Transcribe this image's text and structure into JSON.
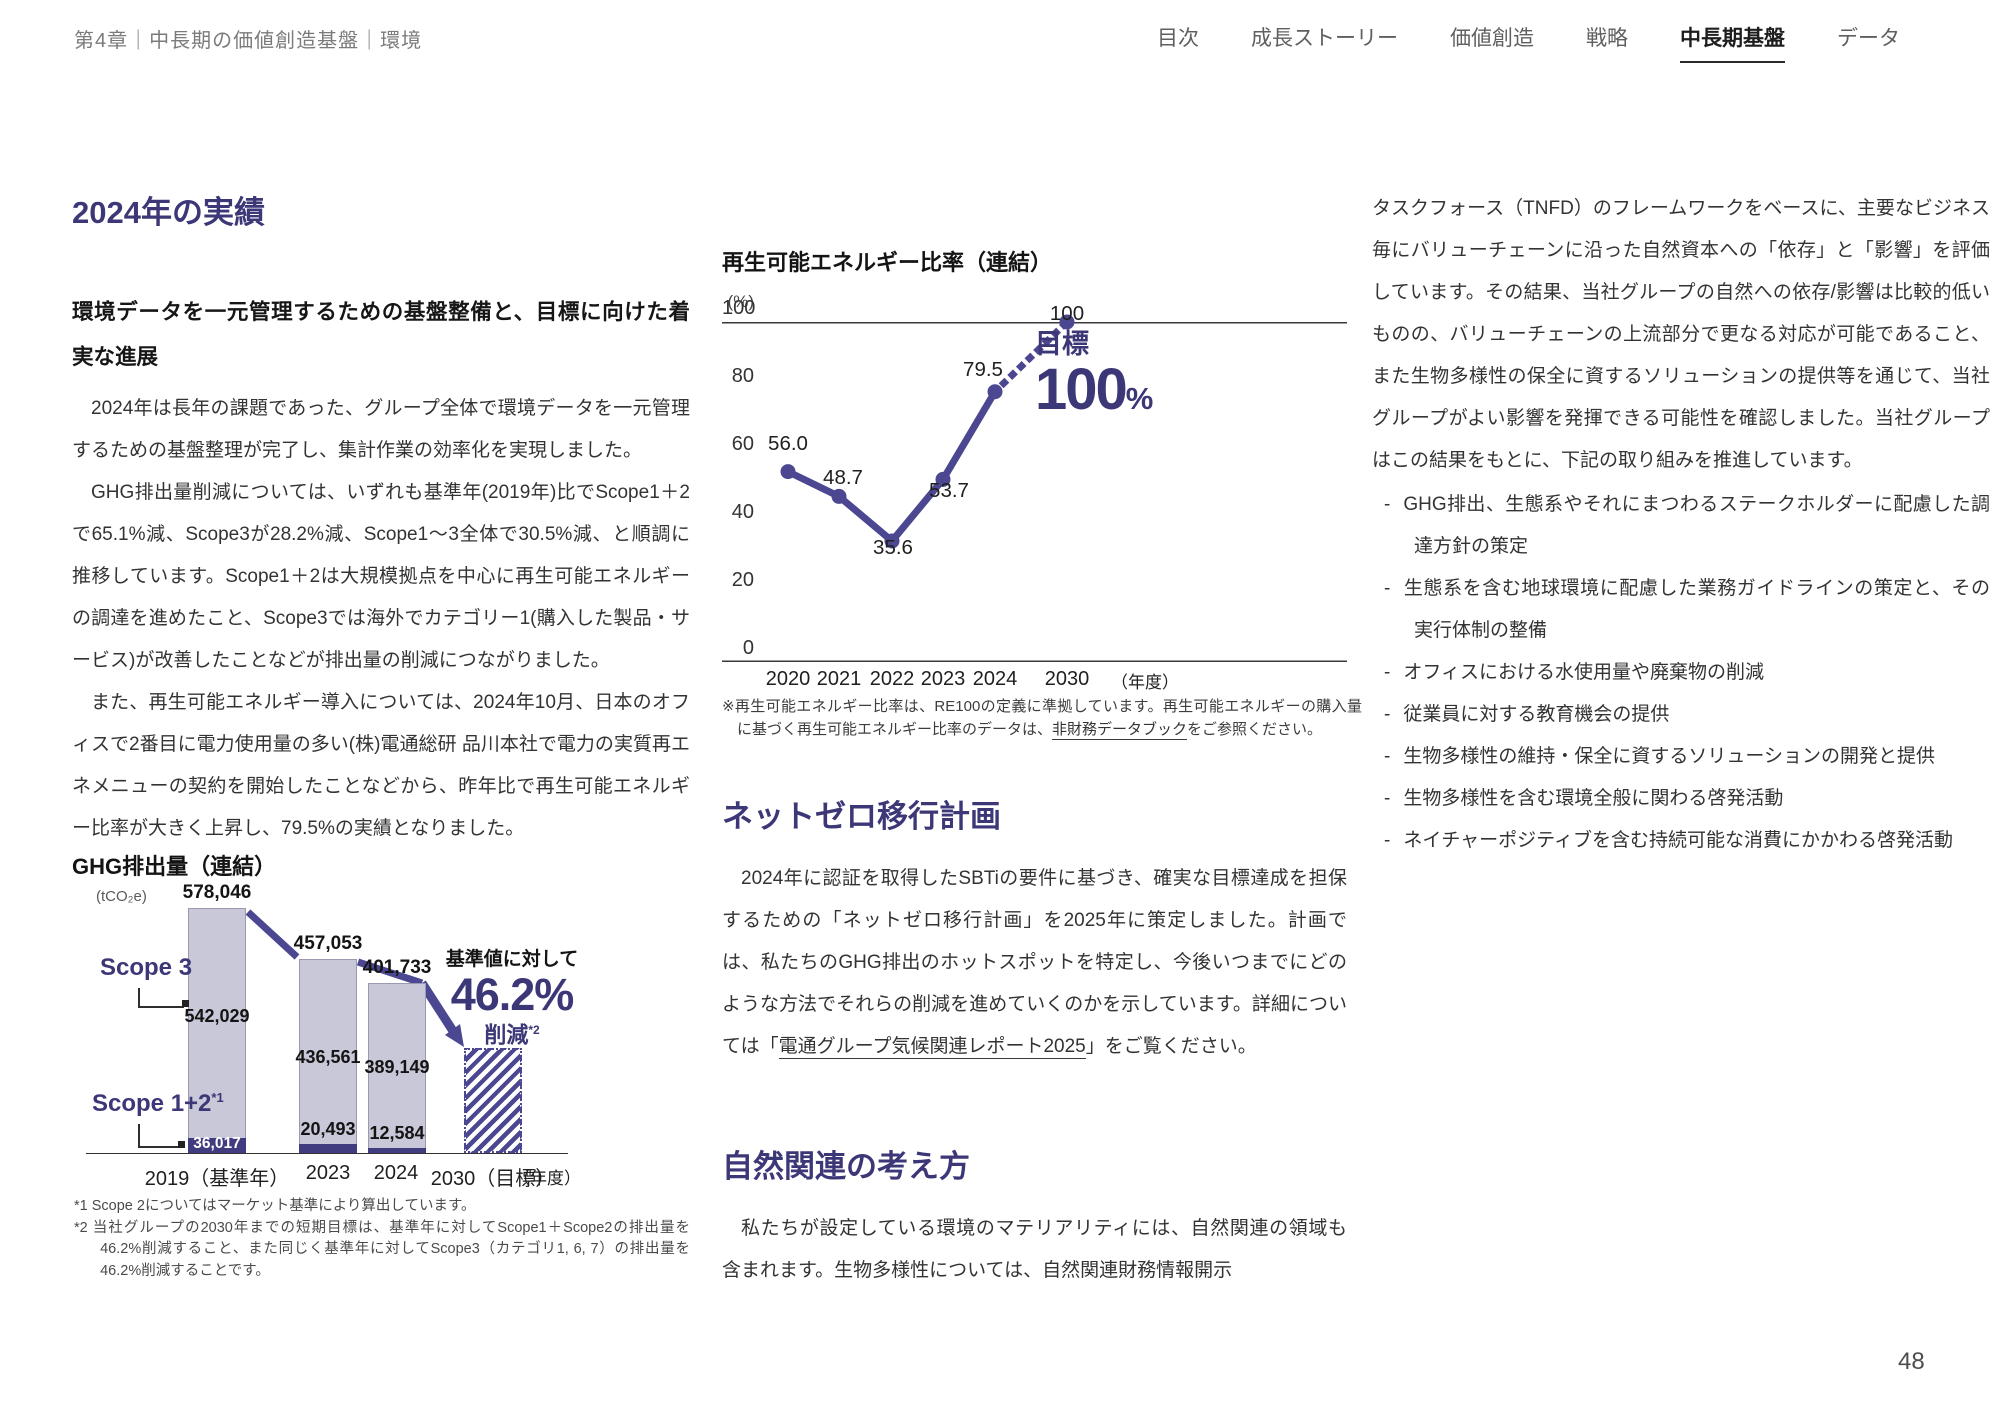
{
  "header": {
    "breadcrumb": "第4章｜中長期の価値創造基盤｜環境",
    "nav": [
      {
        "label": "目次",
        "active": false
      },
      {
        "label": "成長ストーリー",
        "active": false
      },
      {
        "label": "価値創造",
        "active": false
      },
      {
        "label": "戦略",
        "active": false
      },
      {
        "label": "中長期基盤",
        "active": true
      },
      {
        "label": "データ",
        "active": false
      }
    ]
  },
  "left_column": {
    "section_title": "2024年の実績",
    "subheading": "環境データを一元管理するための基盤整備と、目標に向けた着実な進展",
    "paragraphs": [
      "2024年は長年の課題であった、グループ全体で環境データを一元管理するための基盤整理が完了し、集計作業の効率化を実現しました。",
      "GHG排出量削減については、いずれも基準年(2019年)比でScope1＋2で65.1%減、Scope3が28.2%減、Scope1〜3全体で30.5%減、と順調に推移しています。Scope1＋2は大規模拠点を中心に再生可能エネルギーの調達を進めたこと、Scope3では海外でカテゴリー1(購入した製品・サービス)が改善したことなどが排出量の削減につながりました。",
      "また、再生可能エネルギー導入については、2024年10月、日本のオフィスで2番目に電力使用量の多い(株)電通総研 品川本社で電力の実質再エネメニューの契約を開始したことなどから、昨年比で再生可能エネルギー比率が大きく上昇し、79.5%の実績となりました。"
    ]
  },
  "chart_data": [
    {
      "type": "bar",
      "title": "GHG排出量（連結）",
      "unit": "(tCO₂e)",
      "categories": [
        "2019（基準年）",
        "2023",
        "2024",
        "2030（目標）"
      ],
      "x_axis_suffix": "（年度）",
      "totals": [
        578046,
        457053,
        401733,
        null
      ],
      "series": [
        {
          "name": "Scope 3",
          "values": [
            542029,
            436561,
            389149,
            null
          ]
        },
        {
          "name": "Scope 1+2",
          "sup": "*1",
          "values": [
            36017,
            20493,
            12584,
            null
          ]
        }
      ],
      "target_note": {
        "prefix": "基準値に対して",
        "value": "46.2%",
        "suffix": "削減",
        "sup": "*2"
      },
      "reduction_target_pct": 46.2,
      "footnotes": [
        "*1 Scope 2についてはマーケット基準により算出しています。",
        "*2 当社グループの2030年までの短期目標は、基準年に対してScope1＋Scope2の排出量を46.2%削減すること、また同じく基準年に対してScope3（カテゴリ1, 6, 7）の排出量を46.2%削減することです。"
      ]
    },
    {
      "type": "line",
      "title": "再生可能エネルギー比率（連結）",
      "unit": "(%)",
      "x": [
        "2020",
        "2021",
        "2022",
        "2023",
        "2024",
        "2030"
      ],
      "values": [
        56.0,
        48.7,
        35.6,
        53.7,
        79.5,
        100
      ],
      "value_labels": [
        "56.0",
        "48.7",
        "35.6",
        "53.7",
        "79.5",
        "100"
      ],
      "solid_until_index": 4,
      "ylim": [
        0,
        100
      ],
      "yticks": [
        100,
        80,
        60,
        40,
        20,
        0
      ],
      "x_axis_suffix": "（年度）",
      "grid": "top and bottom lines only",
      "legend": "none",
      "target": {
        "label": "目標",
        "value": "100",
        "unit": "%"
      },
      "footnote_pre": "※再生可能エネルギー比率は、RE100の定義に準拠しています。再生可能エネルギーの購入量に基づく再生可能エネルギー比率のデータは、",
      "footnote_link": "非財務データブック",
      "footnote_post": "をご参照ください。"
    }
  ],
  "middle_column": {
    "netzero": {
      "title": "ネットゼロ移行計画",
      "para_pre": "2024年に認証を取得したSBTiの要件に基づき、確実な目標達成を担保するための「ネットゼロ移行計画」を2025年に策定しました。計画では、私たちのGHG排出のホットスポットを特定し、今後いつまでにどのような方法でそれらの削減を進めていくのかを示しています。詳細については「",
      "link": "電通グループ気候関連レポート2025",
      "para_post": "」をご覧ください。"
    },
    "nature": {
      "title": "自然関連の考え方",
      "para": "私たちが設定している環境のマテリアリティには、自然関連の領域も含まれます。生物多様性については、自然関連財務情報開示"
    }
  },
  "right_column": {
    "paragraph": "タスクフォース（TNFD）のフレームワークをベースに、主要なビジネス毎にバリューチェーンに沿った自然資本への「依存」と「影響」を評価しています。その結果、当社グループの自然への依存/影響は比較的低いものの、バリューチェーンの上流部分で更なる対応が可能であること、また生物多様性の保全に資するソリューションの提供等を通じて、当社グループがよい影響を発揮できる可能性を確認しました。当社グループはこの結果をもとに、下記の取り組みを推進しています。",
    "bullet_marker": "-",
    "bullets": [
      "GHG排出、生態系やそれにまつわるステークホルダーに配慮した調達方針の策定",
      "生態系を含む地球環境に配慮した業務ガイドラインの策定と、その実行体制の整備",
      "オフィスにおける水使用量や廃棄物の削減",
      "従業員に対する教育機会の提供",
      "生物多様性の維持・保全に資するソリューションの開発と提供",
      "生物多様性を含む環境全般に関わる啓発活動",
      "ネイチャーポジティブを含む持続可能な消費にかかわる啓発活動"
    ]
  },
  "footer": {
    "page_number": "48"
  },
  "colors": {
    "accent_navy": "#3c3777",
    "accent_purple": "#4c4791",
    "bar_light": "#c9c8d9",
    "bar_dark": "#413c80"
  }
}
